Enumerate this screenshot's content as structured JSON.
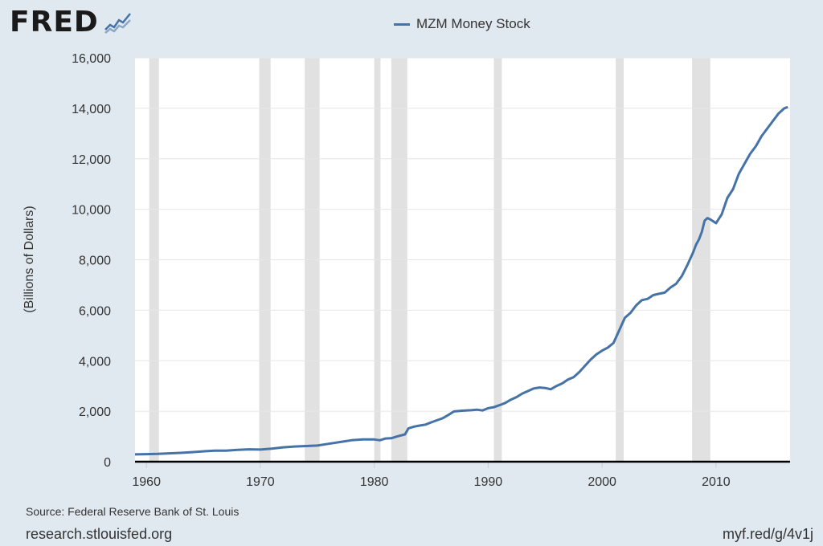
{
  "header": {
    "logo_text": "FRED",
    "logo_icon": "line-chart-icon"
  },
  "chart_data": {
    "type": "line",
    "title": "",
    "legend": [
      "MZM Money Stock"
    ],
    "legend_position": "top-center",
    "ylabel": "(Billions of Dollars)",
    "xlabel": "",
    "xlim": [
      1959.0,
      2016.5
    ],
    "ylim": [
      0,
      16000
    ],
    "x_ticks": [
      1960,
      1970,
      1980,
      1990,
      2000,
      2010
    ],
    "y_ticks": [
      0,
      2000,
      4000,
      6000,
      8000,
      10000,
      12000,
      14000,
      16000
    ],
    "y_tick_labels": [
      "0",
      "2,000",
      "4,000",
      "6,000",
      "8,000",
      "10,000",
      "12,000",
      "14,000",
      "16,000"
    ],
    "grid": "horizontal",
    "line_color": "#4572a7",
    "recession_color": "#e1e1e1",
    "recessions": [
      [
        1960.25,
        1961.1
      ],
      [
        1969.9,
        1970.9
      ],
      [
        1973.9,
        1975.2
      ],
      [
        1980.0,
        1980.55
      ],
      [
        1981.5,
        1982.9
      ],
      [
        1990.5,
        1991.2
      ],
      [
        2001.2,
        2001.9
      ],
      [
        2007.9,
        2009.5
      ]
    ],
    "series": [
      {
        "name": "MZM Money Stock",
        "x": [
          1959.0,
          1960.0,
          1961.0,
          1962.0,
          1963.0,
          1964.0,
          1965.0,
          1966.0,
          1967.0,
          1968.0,
          1969.0,
          1970.0,
          1971.0,
          1972.0,
          1973.0,
          1974.0,
          1975.0,
          1976.0,
          1977.0,
          1978.0,
          1979.0,
          1980.0,
          1980.5,
          1981.0,
          1981.5,
          1982.0,
          1982.7,
          1983.0,
          1983.5,
          1984.0,
          1984.5,
          1985.0,
          1986.0,
          1986.5,
          1987.0,
          1987.5,
          1988.0,
          1988.5,
          1989.0,
          1989.5,
          1990.0,
          1990.5,
          1991.0,
          1991.5,
          1992.0,
          1992.5,
          1993.0,
          1993.5,
          1994.0,
          1994.5,
          1995.0,
          1995.5,
          1996.0,
          1996.5,
          1997.0,
          1997.5,
          1998.0,
          1998.5,
          1999.0,
          1999.5,
          2000.0,
          2000.5,
          2001.0,
          2001.5,
          2002.0,
          2002.5,
          2003.0,
          2003.5,
          2004.0,
          2004.5,
          2005.0,
          2005.5,
          2006.0,
          2006.5,
          2007.0,
          2007.5,
          2008.0,
          2008.25,
          2008.5,
          2008.75,
          2009.0,
          2009.25,
          2009.5,
          2010.0,
          2010.5,
          2011.0,
          2011.5,
          2012.0,
          2012.5,
          2013.0,
          2013.5,
          2014.0,
          2014.5,
          2015.0,
          2015.5,
          2016.0,
          2016.3
        ],
        "y": [
          290,
          300,
          310,
          330,
          350,
          380,
          410,
          440,
          440,
          470,
          490,
          480,
          520,
          570,
          600,
          620,
          640,
          710,
          780,
          850,
          880,
          880,
          850,
          920,
          930,
          1000,
          1080,
          1320,
          1390,
          1430,
          1470,
          1560,
          1720,
          1850,
          1990,
          2010,
          2030,
          2040,
          2060,
          2030,
          2120,
          2160,
          2240,
          2330,
          2460,
          2560,
          2700,
          2800,
          2900,
          2940,
          2920,
          2870,
          3000,
          3100,
          3250,
          3350,
          3550,
          3800,
          4050,
          4250,
          4400,
          4520,
          4700,
          5200,
          5700,
          5900,
          6200,
          6400,
          6450,
          6600,
          6650,
          6700,
          6900,
          7050,
          7350,
          7800,
          8300,
          8600,
          8800,
          9100,
          9550,
          9650,
          9600,
          9450,
          9800,
          10450,
          10800,
          11400,
          11800,
          12200,
          12500,
          12900,
          13200,
          13500,
          13800,
          14000,
          14050
        ]
      }
    ]
  },
  "footer": {
    "source": "Source: Federal Reserve Bank of St. Louis",
    "site": "research.stlouisfed.org",
    "short_url": "myf.red/g/4v1j"
  }
}
